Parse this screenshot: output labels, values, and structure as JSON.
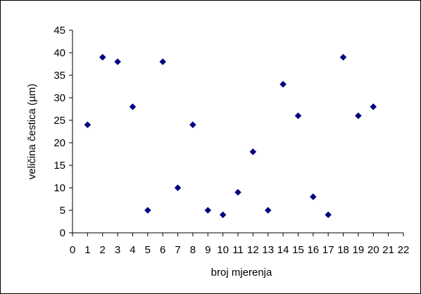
{
  "chart_data": {
    "type": "scatter",
    "title": "",
    "xlabel": "broj mjerenja",
    "ylabel": "veličina čestica (µm)",
    "xlim": [
      0,
      22
    ],
    "ylim": [
      0,
      45
    ],
    "x_ticks": [
      0,
      1,
      2,
      3,
      4,
      5,
      6,
      7,
      8,
      9,
      10,
      11,
      12,
      13,
      14,
      15,
      16,
      17,
      18,
      19,
      20,
      21,
      22
    ],
    "y_ticks": [
      0,
      5,
      10,
      15,
      20,
      25,
      30,
      35,
      40,
      45
    ],
    "grid": false,
    "legend": "none",
    "marker": "diamond",
    "marker_color": "#00007f",
    "points": [
      {
        "x": 1,
        "y": 24
      },
      {
        "x": 2,
        "y": 39
      },
      {
        "x": 3,
        "y": 38
      },
      {
        "x": 4,
        "y": 28
      },
      {
        "x": 5,
        "y": 5
      },
      {
        "x": 6,
        "y": 38
      },
      {
        "x": 7,
        "y": 10
      },
      {
        "x": 8,
        "y": 24
      },
      {
        "x": 9,
        "y": 5
      },
      {
        "x": 10,
        "y": 4
      },
      {
        "x": 11,
        "y": 9
      },
      {
        "x": 12,
        "y": 18
      },
      {
        "x": 13,
        "y": 5
      },
      {
        "x": 14,
        "y": 33
      },
      {
        "x": 15,
        "y": 26
      },
      {
        "x": 16,
        "y": 8
      },
      {
        "x": 17,
        "y": 4
      },
      {
        "x": 18,
        "y": 39
      },
      {
        "x": 19,
        "y": 26
      },
      {
        "x": 20,
        "y": 28
      }
    ]
  }
}
